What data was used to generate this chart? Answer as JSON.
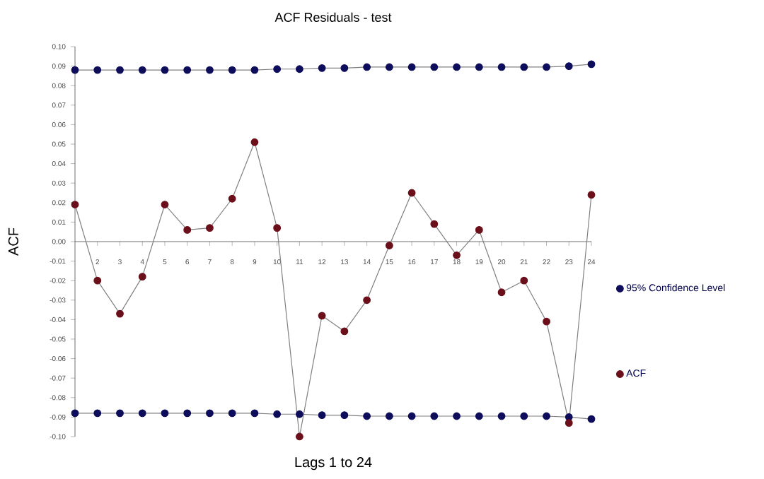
{
  "chart_data": {
    "type": "line",
    "title": "ACF Residuals - test",
    "xlabel": "Lags  1 to 24",
    "ylabel": "ACF",
    "categories": [
      null,
      "2",
      "3",
      "4",
      "5",
      "6",
      "7",
      "8",
      "9",
      "10",
      "11",
      "12",
      "13",
      "14",
      "15",
      "16",
      "17",
      "18",
      "19",
      "20",
      "21",
      "22",
      "23",
      "24"
    ],
    "series": [
      {
        "name": "95% Confidence Level",
        "color": "#0d0d5c",
        "values": [
          0.088,
          0.088,
          0.088,
          0.088,
          0.088,
          0.088,
          0.088,
          0.088,
          0.088,
          0.0885,
          0.0885,
          0.089,
          0.089,
          0.0895,
          0.0895,
          0.0895,
          0.0895,
          0.0895,
          0.0895,
          0.0895,
          0.0895,
          0.0895,
          0.09,
          0.091
        ]
      },
      {
        "color": "#0d0d5c",
        "values": [
          -0.088,
          -0.088,
          -0.088,
          -0.088,
          -0.088,
          -0.088,
          -0.088,
          -0.088,
          -0.088,
          -0.0885,
          -0.0885,
          -0.089,
          -0.089,
          -0.0895,
          -0.0895,
          -0.0895,
          -0.0895,
          -0.0895,
          -0.0895,
          -0.0895,
          -0.0895,
          -0.0895,
          -0.09,
          -0.091
        ]
      },
      {
        "name": "ACF",
        "color": "#6b0f1a",
        "values": [
          0.019,
          -0.02,
          -0.037,
          -0.018,
          0.019,
          0.006,
          0.007,
          0.022,
          0.051,
          0.007,
          -0.1,
          -0.038,
          -0.046,
          -0.03,
          -0.002,
          0.025,
          0.009,
          -0.007,
          0.006,
          -0.026,
          -0.02,
          -0.041,
          -0.093,
          0.024
        ]
      }
    ],
    "ylim": [
      -0.1,
      0.1
    ],
    "yticks": [
      {
        "value": 0.1,
        "label": "0.10"
      },
      {
        "value": 0.09,
        "label": "0.09"
      },
      {
        "value": 0.08,
        "label": "0.08"
      },
      {
        "value": 0.07,
        "label": "0.07"
      },
      {
        "value": 0.06,
        "label": "0.06"
      },
      {
        "value": 0.05,
        "label": "0.05"
      },
      {
        "value": 0.04,
        "label": "0.04"
      },
      {
        "value": 0.03,
        "label": "0.03"
      },
      {
        "value": 0.02,
        "label": "0.02"
      },
      {
        "value": 0.01,
        "label": "0.01"
      },
      {
        "value": 0,
        "label": "0.00"
      },
      {
        "value": -0.01,
        "label": "-0.01"
      },
      {
        "value": -0.02,
        "label": "-0.02"
      },
      {
        "value": -0.03,
        "label": "-0.03"
      },
      {
        "value": -0.04,
        "label": "-0.04"
      },
      {
        "value": -0.05,
        "label": "-0.05"
      },
      {
        "value": -0.06,
        "label": "-0.06"
      },
      {
        "value": -0.07,
        "label": "-0.07"
      },
      {
        "value": -0.08,
        "label": "-0.08"
      },
      {
        "value": -0.09,
        "label": "-0.09"
      },
      {
        "value": -0.1,
        "label": "-0.10"
      }
    ],
    "marker": "circle",
    "line_style": "solid",
    "legend": "right"
  }
}
